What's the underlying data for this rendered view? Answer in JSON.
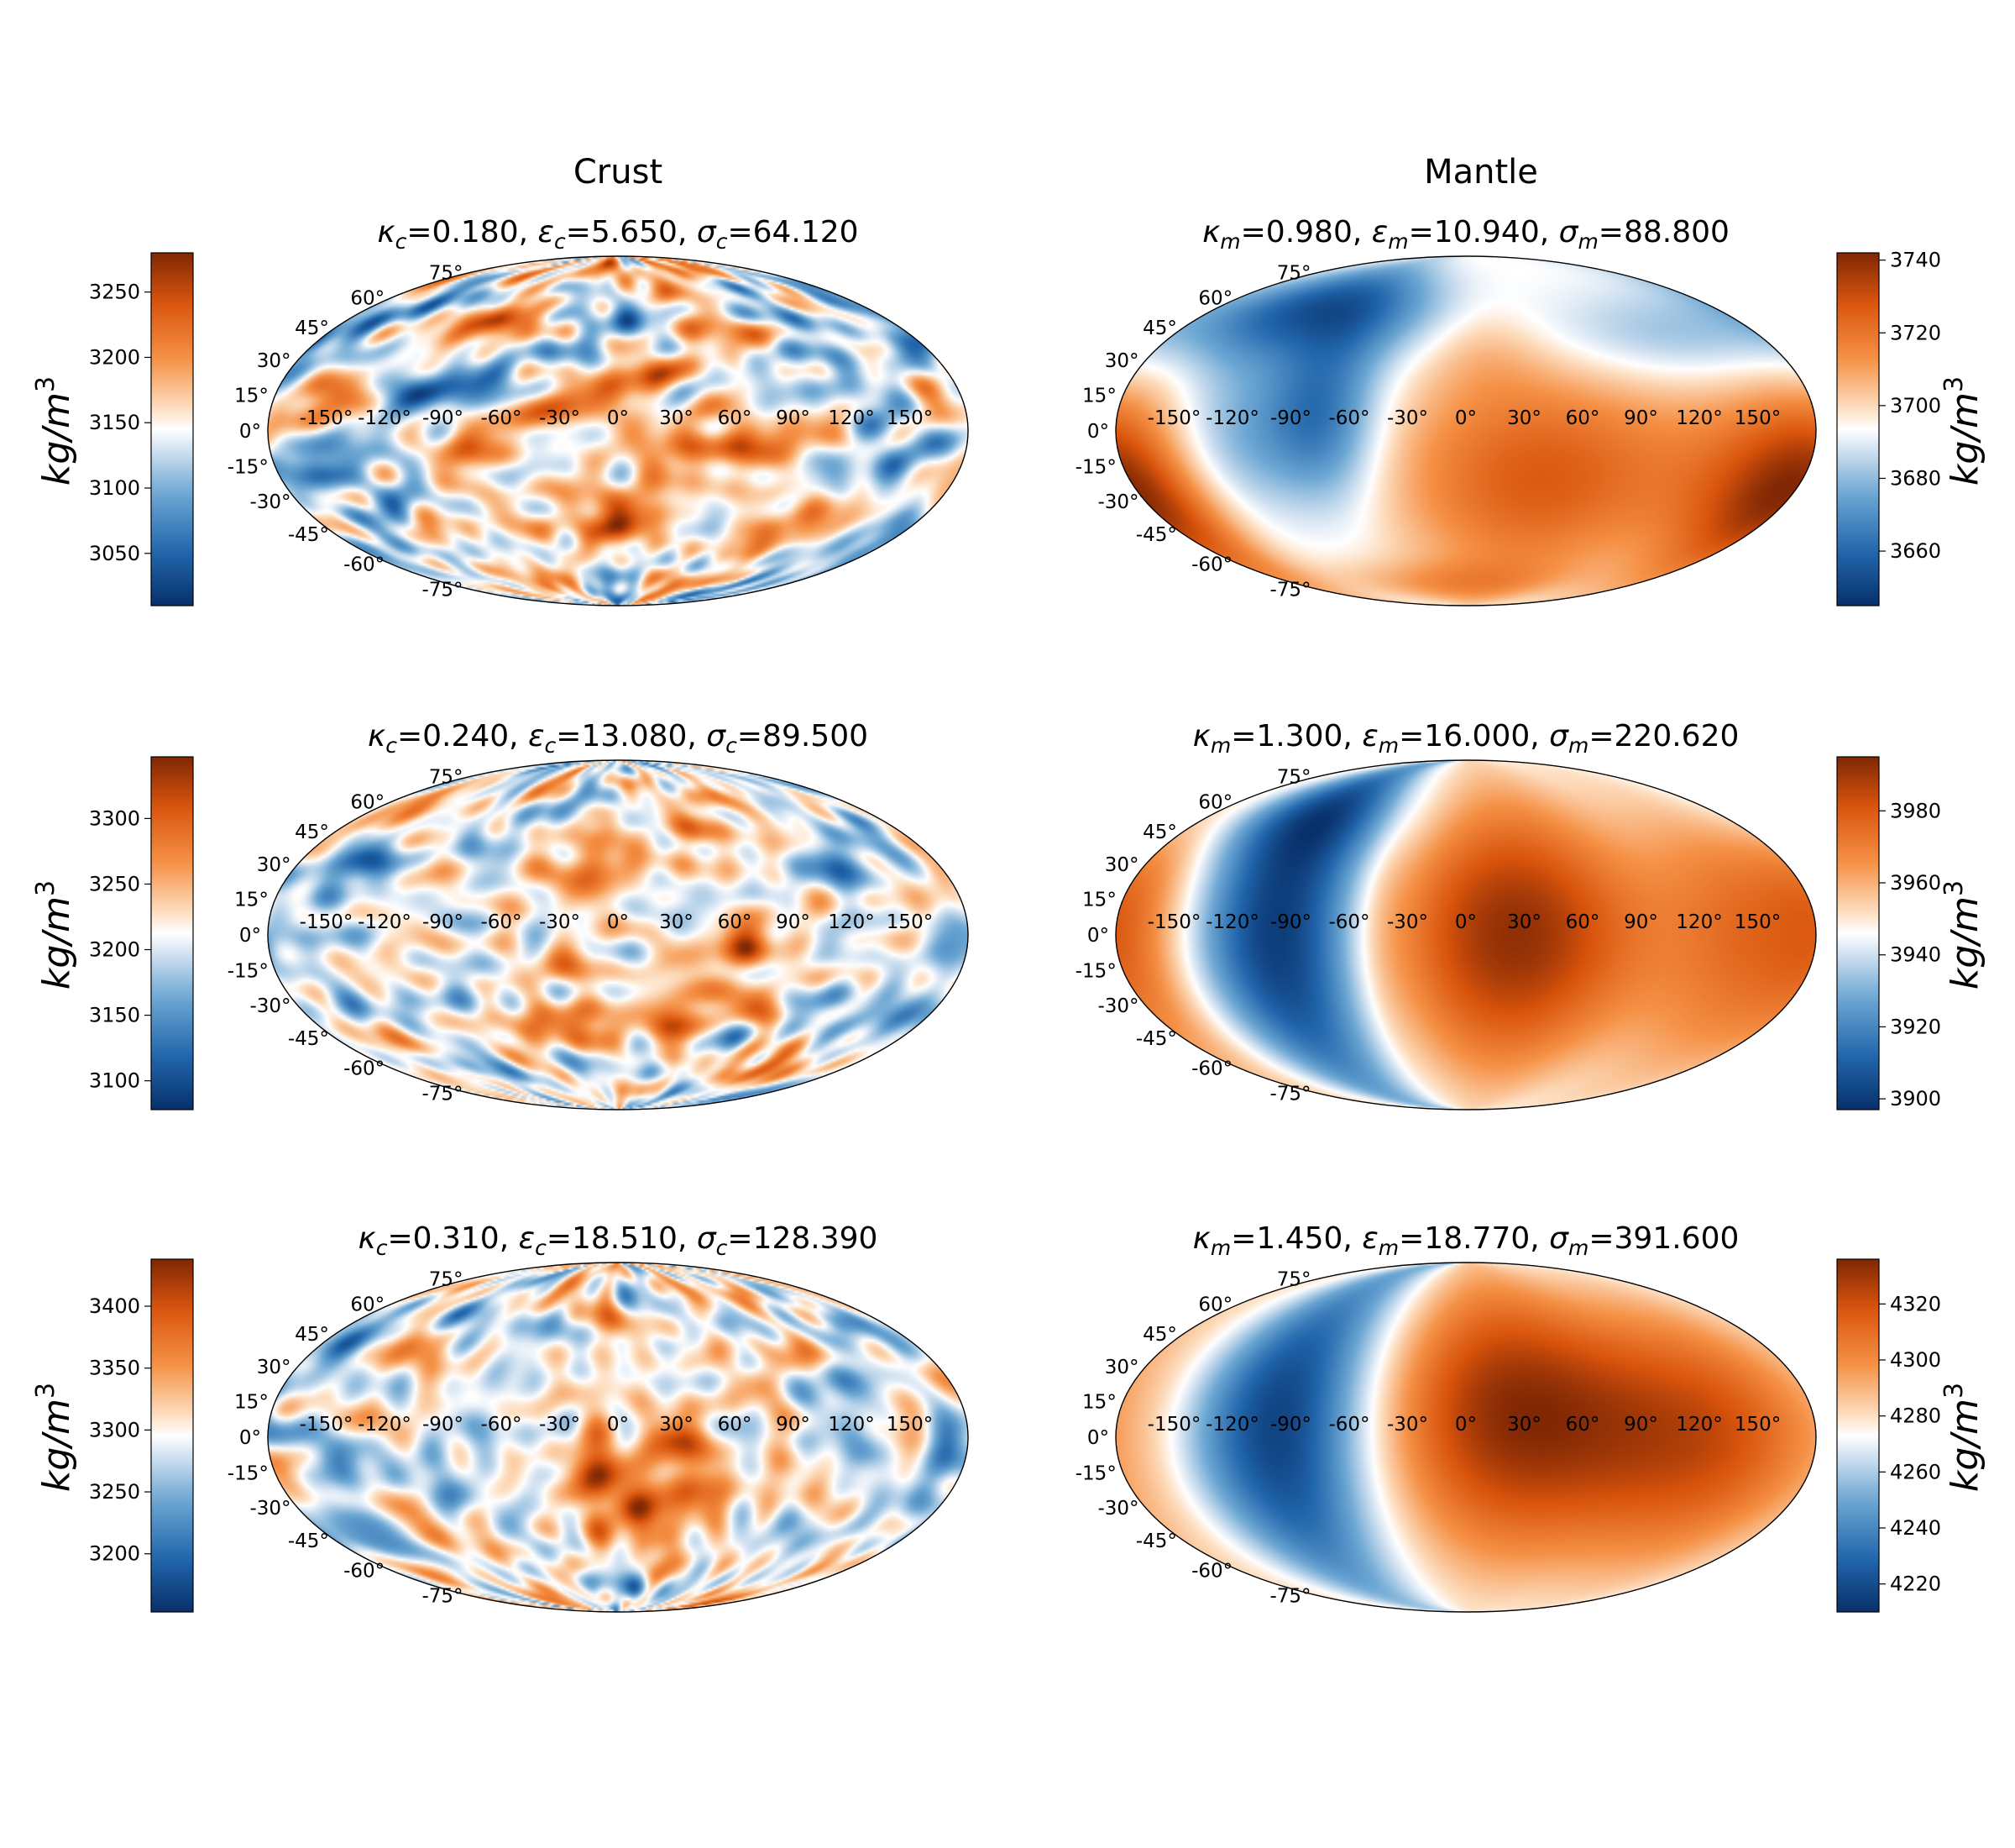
{
  "figure": {
    "columns": [
      {
        "title": "Crust"
      },
      {
        "title": "Mantle"
      }
    ]
  },
  "colors": {
    "colormap_low": "#08306b",
    "colormap_mid": "#ffffff",
    "colormap_high": "#7f2704"
  },
  "chart_data": [
    {
      "type": "heatmap",
      "projection": "mollweide",
      "panel": "crust-row1",
      "title_parts": {
        "kappa_sub": "c",
        "kappa": "0.180",
        "eps_sub": "c",
        "eps": "5.650",
        "sigma_sub": "c",
        "sigma": "64.120"
      },
      "lon_ticks": [
        "-150°",
        "-120°",
        "-90°",
        "-60°",
        "-30°",
        "0°",
        "30°",
        "60°",
        "90°",
        "120°",
        "150°"
      ],
      "lat_ticks": [
        "75°",
        "60°",
        "45°",
        "30°",
        "15°",
        "0°",
        "-15°",
        "-30°",
        "-45°",
        "-60°",
        "-75°"
      ],
      "colorbar": {
        "ticks": [
          3050,
          3100,
          3150,
          3200,
          3250
        ],
        "range": [
          3010,
          3280
        ],
        "label": "kg/m",
        "label_sup": "3",
        "side": "left"
      },
      "pattern": "fine",
      "seed": 11
    },
    {
      "type": "heatmap",
      "projection": "mollweide",
      "panel": "mantle-row1",
      "title_parts": {
        "kappa_sub": "m",
        "kappa": "0.980",
        "eps_sub": "m",
        "eps": "10.940",
        "sigma_sub": "m",
        "sigma": "88.800"
      },
      "lon_ticks": [
        "-150°",
        "-120°",
        "-90°",
        "-60°",
        "-30°",
        "0°",
        "30°",
        "60°",
        "90°",
        "120°",
        "150°"
      ],
      "lat_ticks": [
        "75°",
        "60°",
        "45°",
        "30°",
        "15°",
        "0°",
        "-15°",
        "-30°",
        "-45°",
        "-60°",
        "-75°"
      ],
      "colorbar": {
        "ticks": [
          3660,
          3680,
          3700,
          3720,
          3740
        ],
        "range": [
          3645,
          3742
        ],
        "label": "kg/m",
        "label_sup": "3",
        "side": "right"
      },
      "pattern": "smooth1",
      "seed": 21
    },
    {
      "type": "heatmap",
      "projection": "mollweide",
      "panel": "crust-row2",
      "title_parts": {
        "kappa_sub": "c",
        "kappa": "0.240",
        "eps_sub": "c",
        "eps": "13.080",
        "sigma_sub": "c",
        "sigma": "89.500"
      },
      "lon_ticks": [
        "-150°",
        "-120°",
        "-90°",
        "-60°",
        "-30°",
        "0°",
        "30°",
        "60°",
        "90°",
        "120°",
        "150°"
      ],
      "lat_ticks": [
        "75°",
        "60°",
        "45°",
        "30°",
        "15°",
        "0°",
        "-15°",
        "-30°",
        "-45°",
        "-60°",
        "-75°"
      ],
      "colorbar": {
        "ticks": [
          3100,
          3150,
          3200,
          3250,
          3300
        ],
        "range": [
          3078,
          3347
        ],
        "label": "kg/m",
        "label_sup": "3",
        "side": "left"
      },
      "pattern": "fine",
      "seed": 12
    },
    {
      "type": "heatmap",
      "projection": "mollweide",
      "panel": "mantle-row2",
      "title_parts": {
        "kappa_sub": "m",
        "kappa": "1.300",
        "eps_sub": "m",
        "eps": "16.000",
        "sigma_sub": "m",
        "sigma": "220.620"
      },
      "lon_ticks": [
        "-150°",
        "-120°",
        "-90°",
        "-60°",
        "-30°",
        "0°",
        "30°",
        "60°",
        "90°",
        "120°",
        "150°"
      ],
      "lat_ticks": [
        "75°",
        "60°",
        "45°",
        "30°",
        "15°",
        "0°",
        "-15°",
        "-30°",
        "-45°",
        "-60°",
        "-75°"
      ],
      "colorbar": {
        "ticks": [
          3900,
          3920,
          3940,
          3960,
          3980
        ],
        "range": [
          3897,
          3995
        ],
        "label": "kg/m",
        "label_sup": "3",
        "side": "right"
      },
      "pattern": "smooth2",
      "seed": 22
    },
    {
      "type": "heatmap",
      "projection": "mollweide",
      "panel": "crust-row3",
      "title_parts": {
        "kappa_sub": "c",
        "kappa": "0.310",
        "eps_sub": "c",
        "eps": "18.510",
        "sigma_sub": "c",
        "sigma": "128.390"
      },
      "lon_ticks": [
        "-150°",
        "-120°",
        "-90°",
        "-60°",
        "-30°",
        "0°",
        "30°",
        "60°",
        "90°",
        "120°",
        "150°"
      ],
      "lat_ticks": [
        "75°",
        "60°",
        "45°",
        "30°",
        "15°",
        "0°",
        "-15°",
        "-30°",
        "-45°",
        "-60°",
        "-75°"
      ],
      "colorbar": {
        "ticks": [
          3200,
          3250,
          3300,
          3350,
          3400
        ],
        "range": [
          3153,
          3438
        ],
        "label": "kg/m",
        "label_sup": "3",
        "side": "left"
      },
      "pattern": "fine",
      "seed": 13
    },
    {
      "type": "heatmap",
      "projection": "mollweide",
      "panel": "mantle-row3",
      "title_parts": {
        "kappa_sub": "m",
        "kappa": "1.450",
        "eps_sub": "m",
        "eps": "18.770",
        "sigma_sub": "m",
        "sigma": "391.600"
      },
      "lon_ticks": [
        "-150°",
        "-120°",
        "-90°",
        "-60°",
        "-30°",
        "0°",
        "30°",
        "60°",
        "90°",
        "120°",
        "150°"
      ],
      "lat_ticks": [
        "75°",
        "60°",
        "45°",
        "30°",
        "15°",
        "0°",
        "-15°",
        "-30°",
        "-45°",
        "-60°",
        "-75°"
      ],
      "colorbar": {
        "ticks": [
          4220,
          4240,
          4260,
          4280,
          4300,
          4320
        ],
        "range": [
          4210,
          4336
        ],
        "label": "kg/m",
        "label_sup": "3",
        "side": "right"
      },
      "pattern": "smooth3",
      "seed": 23
    }
  ]
}
